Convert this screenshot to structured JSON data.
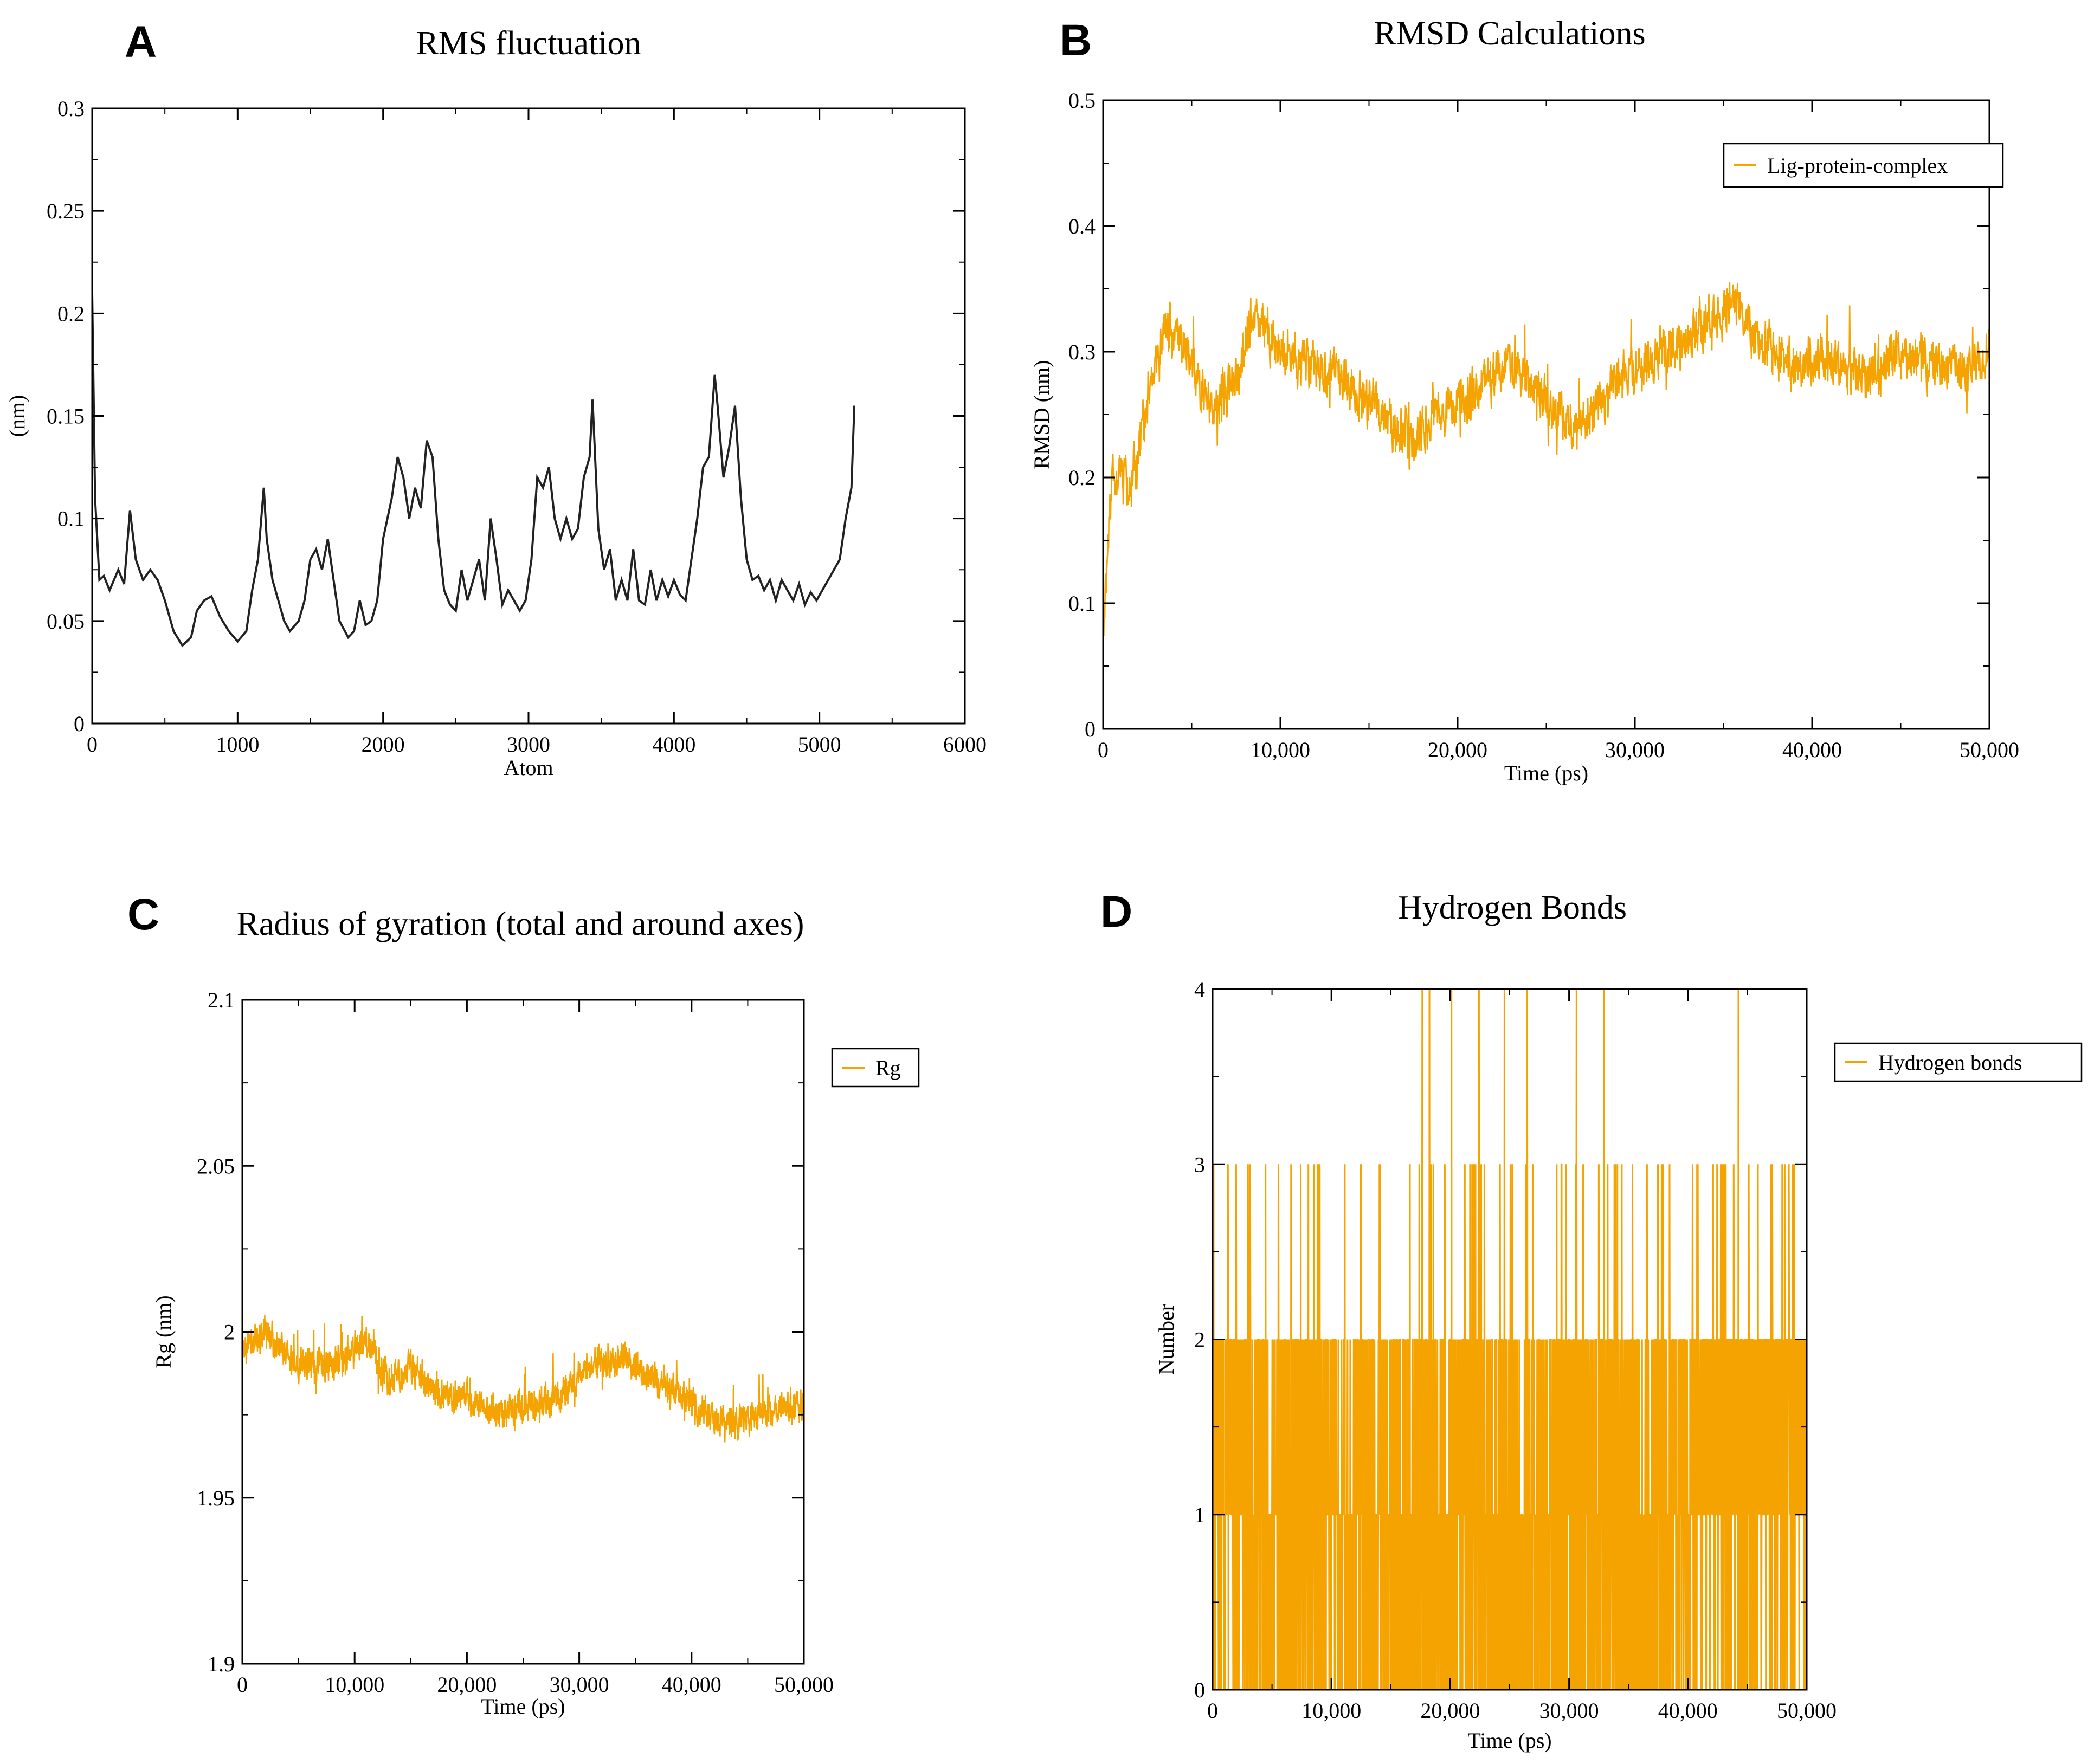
{
  "colors": {
    "orange": "#f5a300",
    "black": "#222222",
    "axis": "#000000"
  },
  "panels": [
    {
      "letter": "A"
    },
    {
      "letter": "B"
    },
    {
      "letter": "C"
    },
    {
      "letter": "D"
    }
  ],
  "chart_data": [
    {
      "type": "line",
      "title": "RMS fluctuation",
      "xlabel": "Atom",
      "ylabel": "(nm)",
      "xlim": [
        0,
        6000
      ],
      "ylim": [
        0,
        0.3
      ],
      "xticks": [
        "0",
        "1000",
        "2000",
        "3000",
        "4000",
        "5000",
        "6000"
      ],
      "yticks": [
        "0",
        "0.05",
        "0.1",
        "0.15",
        "0.2",
        "0.25",
        "0.3"
      ],
      "grid": false,
      "series": [
        {
          "color": "#222222",
          "x": [
            0,
            20,
            50,
            80,
            120,
            180,
            220,
            260,
            300,
            350,
            400,
            450,
            500,
            560,
            620,
            680,
            720,
            770,
            820,
            880,
            940,
            1000,
            1060,
            1100,
            1140,
            1180,
            1200,
            1240,
            1280,
            1320,
            1360,
            1420,
            1460,
            1500,
            1540,
            1580,
            1620,
            1660,
            1700,
            1760,
            1800,
            1840,
            1880,
            1920,
            1960,
            2000,
            2060,
            2100,
            2140,
            2180,
            2220,
            2260,
            2300,
            2340,
            2380,
            2420,
            2460,
            2500,
            2540,
            2580,
            2620,
            2660,
            2700,
            2740,
            2780,
            2820,
            2860,
            2900,
            2940,
            2980,
            3020,
            3060,
            3100,
            3140,
            3180,
            3220,
            3260,
            3300,
            3340,
            3380,
            3420,
            3440,
            3480,
            3520,
            3560,
            3600,
            3640,
            3680,
            3720,
            3760,
            3800,
            3840,
            3880,
            3920,
            3960,
            4000,
            4040,
            4080,
            4120,
            4160,
            4200,
            4240,
            4280,
            4300,
            4340,
            4380,
            4420,
            4460,
            4500,
            4540,
            4580,
            4620,
            4660,
            4700,
            4740,
            4780,
            4820,
            4860,
            4900,
            4940,
            4980,
            5020,
            5060,
            5100,
            5140,
            5180,
            5220,
            5240
          ],
          "y": [
            0.21,
            0.11,
            0.07,
            0.072,
            0.065,
            0.075,
            0.068,
            0.104,
            0.08,
            0.07,
            0.075,
            0.07,
            0.06,
            0.045,
            0.038,
            0.042,
            0.055,
            0.06,
            0.062,
            0.052,
            0.045,
            0.04,
            0.045,
            0.065,
            0.08,
            0.115,
            0.09,
            0.07,
            0.06,
            0.05,
            0.045,
            0.05,
            0.06,
            0.08,
            0.085,
            0.075,
            0.09,
            0.07,
            0.05,
            0.042,
            0.045,
            0.06,
            0.048,
            0.05,
            0.06,
            0.09,
            0.11,
            0.13,
            0.12,
            0.1,
            0.115,
            0.105,
            0.138,
            0.13,
            0.09,
            0.065,
            0.058,
            0.055,
            0.075,
            0.06,
            0.07,
            0.08,
            0.06,
            0.1,
            0.08,
            0.058,
            0.065,
            0.06,
            0.055,
            0.06,
            0.08,
            0.12,
            0.115,
            0.125,
            0.1,
            0.09,
            0.1,
            0.09,
            0.095,
            0.12,
            0.13,
            0.158,
            0.095,
            0.075,
            0.085,
            0.06,
            0.07,
            0.06,
            0.085,
            0.06,
            0.058,
            0.075,
            0.06,
            0.07,
            0.062,
            0.07,
            0.063,
            0.06,
            0.08,
            0.1,
            0.125,
            0.13,
            0.17,
            0.155,
            0.12,
            0.135,
            0.155,
            0.11,
            0.08,
            0.07,
            0.072,
            0.065,
            0.07,
            0.06,
            0.07,
            0.065,
            0.06,
            0.068,
            0.058,
            0.064,
            0.06,
            0.065,
            0.07,
            0.075,
            0.08,
            0.1,
            0.115,
            0.155
          ]
        }
      ]
    },
    {
      "type": "line",
      "title": "RMSD Calculations",
      "xlabel": "Time (ps)",
      "ylabel": "RMSD (nm)",
      "xlim": [
        0,
        50000
      ],
      "ylim": [
        0,
        0.5
      ],
      "xticks": [
        "0",
        "10,000",
        "20,000",
        "30,000",
        "40,000",
        "50,000"
      ],
      "yticks": [
        "0",
        "0.1",
        "0.2",
        "0.3",
        "0.4",
        "0.5"
      ],
      "legend": "top-right",
      "grid": false,
      "noise": 0.025,
      "series": [
        {
          "name": "Lig-protein-complex",
          "color": "#f5a300",
          "x": [
            0,
            500,
            1500,
            2500,
            3500,
            4500,
            5500,
            6500,
            7500,
            8500,
            9500,
            11000,
            13000,
            15000,
            16500,
            17500,
            19000,
            21000,
            23000,
            25000,
            26500,
            28000,
            30000,
            32000,
            34000,
            35500,
            37000,
            39000,
            41000,
            43000,
            45000,
            47000,
            49000,
            50000
          ],
          "y": [
            0.08,
            0.2,
            0.19,
            0.26,
            0.32,
            0.31,
            0.27,
            0.26,
            0.28,
            0.33,
            0.31,
            0.29,
            0.28,
            0.26,
            0.24,
            0.23,
            0.25,
            0.27,
            0.29,
            0.26,
            0.24,
            0.26,
            0.29,
            0.3,
            0.32,
            0.34,
            0.31,
            0.29,
            0.29,
            0.28,
            0.3,
            0.29,
            0.29,
            0.3
          ]
        }
      ]
    },
    {
      "type": "line",
      "title": "Radius of gyration (total and around axes)",
      "xlabel": "Time (ps)",
      "ylabel": "Rg (nm)",
      "xlim": [
        0,
        50000
      ],
      "ylim": [
        1.9,
        2.1
      ],
      "xticks": [
        "0",
        "10,000",
        "20,000",
        "30,000",
        "40,000",
        "50,000"
      ],
      "yticks": [
        "1.9",
        "1.95",
        "2",
        "2.05",
        "2.1"
      ],
      "legend": "top-right",
      "grid": false,
      "noise": 0.006,
      "series": [
        {
          "name": "Rg",
          "color": "#f5a300",
          "x": [
            0,
            2000,
            5000,
            8000,
            11000,
            13000,
            15000,
            17000,
            20000,
            23000,
            25000,
            28000,
            31000,
            34000,
            37000,
            40000,
            43000,
            46000,
            50000
          ],
          "y": [
            1.995,
            2.0,
            1.99,
            1.99,
            1.998,
            1.985,
            1.99,
            1.982,
            1.98,
            1.975,
            1.978,
            1.98,
            1.99,
            1.992,
            1.985,
            1.978,
            1.972,
            1.975,
            1.978
          ]
        }
      ]
    },
    {
      "type": "line",
      "title": "Hydrogen Bonds",
      "xlabel": "Time (ps)",
      "ylabel": "Number",
      "xlim": [
        0,
        50000
      ],
      "ylim": [
        0,
        4
      ],
      "xticks": [
        "0",
        "10,000",
        "20,000",
        "30,000",
        "40,000",
        "50,000"
      ],
      "yticks": [
        "0",
        "1",
        "2",
        "3",
        "4"
      ],
      "legend": "top-right",
      "grid": false,
      "series": [
        {
          "name": "Hydrogen bonds",
          "color": "#f5a300",
          "x": [
            0,
            2000,
            5000,
            8000,
            12000,
            15000,
            20000,
            25000,
            28000,
            30000,
            35000,
            40000,
            42000,
            45000,
            48000,
            50000
          ],
          "y": [
            2,
            2,
            1,
            1,
            1,
            2,
            1,
            1,
            2,
            1,
            1,
            2,
            2,
            2,
            2,
            2
          ]
        }
      ]
    }
  ]
}
